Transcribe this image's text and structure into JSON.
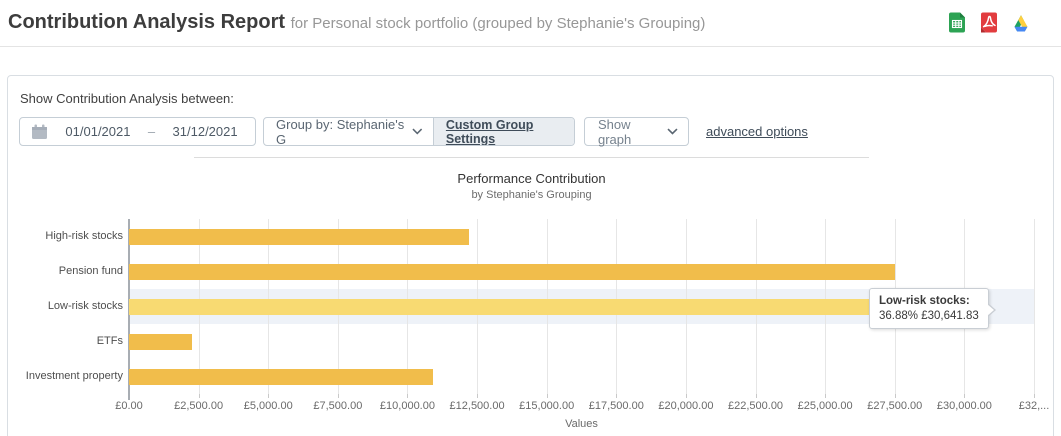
{
  "header": {
    "title": "Contribution Analysis Report",
    "subtitle": "for Personal stock portfolio (grouped by Stephanie's Grouping)",
    "export_icons": [
      "sheets-export-icon",
      "pdf-export-icon",
      "drive-export-icon"
    ]
  },
  "filters": {
    "label": "Show Contribution Analysis between:",
    "date_from": "01/01/2021",
    "date_separator": "–",
    "date_to": "31/12/2021",
    "group_by": "Group by: Stephanie's G",
    "custom_group_settings": "Custom Group Settings",
    "show_graph": "Show graph",
    "advanced_options": "advanced options"
  },
  "chart_data": {
    "type": "bar",
    "orientation": "horizontal",
    "title": "Performance Contribution",
    "subtitle": "by Stephanie's Grouping",
    "categories": [
      "High-risk stocks",
      "Pension fund",
      "Low-risk stocks",
      "ETFs",
      "Investment property"
    ],
    "values": [
      12200,
      27500,
      30641.83,
      2260,
      10900
    ],
    "currency": "£",
    "xlabel": "Values",
    "xlim": [
      0,
      32500
    ],
    "tick_interval": 2500,
    "tick_labels": [
      "£0.00",
      "£2,500.00",
      "£5,000.00",
      "£7,500.00",
      "£10,000.00",
      "£12,500.00",
      "£15,000.00",
      "£17,500.00",
      "£20,000.00",
      "£22,500.00",
      "£25,000.00",
      "£27,500.00",
      "£30,000.00",
      "£32,..."
    ],
    "grid": true,
    "legend": "none",
    "bar_color": "#f1bd4b",
    "hover_bar_color": "#f8da72",
    "hover_row_color": "#eef2f8",
    "hover_index": 2,
    "tooltip": {
      "title": "Low-risk stocks:",
      "detail": "36.88% £30,641.83"
    }
  }
}
